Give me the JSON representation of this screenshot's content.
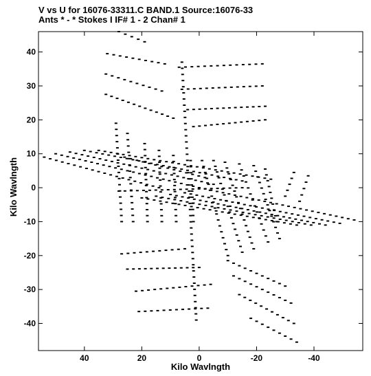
{
  "chart_data": {
    "type": "scatter",
    "title": "V vs U for 16076-33311.C BAND.1   Source:16076-33",
    "subtitle": "Ants * - *    Stokes I  IF# 1 - 2  Chan# 1",
    "xlabel": "Kilo Wavlngth",
    "ylabel": "Kilo Wavlngth",
    "xlim": [
      56,
      -57
    ],
    "ylim": [
      -48,
      46
    ],
    "x_reversed": true,
    "grid": false,
    "legend": "none",
    "xticks": [
      40,
      20,
      0,
      -20,
      -40
    ],
    "xtick_labels": [
      "40",
      "20",
      "0",
      "-20",
      "-40"
    ],
    "yticks": [
      40,
      30,
      20,
      10,
      0,
      -10,
      -20,
      -30,
      -40
    ],
    "ytick_labels": [
      "40",
      "30",
      "20",
      "10",
      "0",
      "-10",
      "-20",
      "-30",
      "-40"
    ],
    "point_color": "#000000",
    "tracks": [
      {
        "u0": 28.0,
        "v0": 46.0,
        "u1": 19.0,
        "v1": 43.0
      },
      {
        "u0": 32.0,
        "v0": 39.5,
        "u1": 12.0,
        "v1": 36.5
      },
      {
        "u0": 32.5,
        "v0": 33.5,
        "u1": 13.0,
        "v1": 28.5
      },
      {
        "u0": 32.5,
        "v0": 27.5,
        "u1": 9.0,
        "v1": 20.5
      },
      {
        "u0": 7.0,
        "v0": 35.5,
        "u1": -22.0,
        "v1": 36.5
      },
      {
        "u0": 6.0,
        "v0": 29.0,
        "u1": -22.0,
        "v1": 30.0
      },
      {
        "u0": 4.0,
        "v0": 23.0,
        "u1": -23.0,
        "v1": 24.0
      },
      {
        "u0": 2.0,
        "v0": 18.0,
        "u1": -23.0,
        "v1": 20.0
      },
      {
        "u0": 6.0,
        "v0": 37.0,
        "u1": 1.0,
        "v1": -39.0
      },
      {
        "u0": 27.0,
        "v0": -19.5,
        "u1": 5.0,
        "v1": -18.0
      },
      {
        "u0": 25.0,
        "v0": -24.0,
        "u1": 0.0,
        "v1": -23.5
      },
      {
        "u0": 22.0,
        "v0": -30.5,
        "u1": -4.0,
        "v1": -28.5
      },
      {
        "u0": 21.0,
        "v0": -36.5,
        "u1": -3.0,
        "v1": -35.5
      },
      {
        "u0": -10.0,
        "v0": -21.5,
        "u1": -30.0,
        "v1": -29.0
      },
      {
        "u0": -12.0,
        "v0": -26.0,
        "u1": -32.0,
        "v1": -34.0
      },
      {
        "u0": -14.0,
        "v0": -31.5,
        "u1": -33.0,
        "v1": -40.0
      },
      {
        "u0": -18.0,
        "v0": -38.5,
        "u1": -34.0,
        "v1": -45.5
      },
      {
        "u0": 54.0,
        "v0": 9.0,
        "u1": 14.0,
        "v1": 0.0
      },
      {
        "u0": 50.0,
        "v0": 10.0,
        "u1": 0.0,
        "v1": 0.0
      },
      {
        "u0": 45.0,
        "v0": 10.5,
        "u1": -5.0,
        "v1": 1.0
      },
      {
        "u0": 40.0,
        "v0": 11.0,
        "u1": -15.0,
        "v1": 2.0
      },
      {
        "u0": 35.0,
        "v0": 11.0,
        "u1": -25.0,
        "v1": 2.5
      },
      {
        "u0": 29.0,
        "v0": 19.0,
        "u1": 27.0,
        "v1": -10.0
      },
      {
        "u0": 25.0,
        "v0": 16.0,
        "u1": 23.0,
        "v1": -10.0
      },
      {
        "u0": 19.0,
        "v0": 13.0,
        "u1": 18.0,
        "v1": -10.0
      },
      {
        "u0": 14.0,
        "v0": 11.0,
        "u1": 13.0,
        "v1": -10.0
      },
      {
        "u0": 9.0,
        "v0": 9.5,
        "u1": 8.0,
        "v1": -10.0
      },
      {
        "u0": 3.0,
        "v0": 8.0,
        "u1": 2.0,
        "v1": -10.0
      },
      {
        "u0": 28.0,
        "v0": -1.0,
        "u1": -15.0,
        "v1": 0.0
      },
      {
        "u0": 26.0,
        "v0": 9.0,
        "u1": -2.0,
        "v1": 3.0
      },
      {
        "u0": -1.0,
        "v0": 8.0,
        "u1": -10.0,
        "v1": -20.0
      },
      {
        "u0": -5.0,
        "v0": 8.0,
        "u1": -15.0,
        "v1": -19.0
      },
      {
        "u0": -9.0,
        "v0": 7.5,
        "u1": -19.0,
        "v1": -18.0
      },
      {
        "u0": -14.0,
        "v0": 7.0,
        "u1": -24.0,
        "v1": -16.0
      },
      {
        "u0": -19.0,
        "v0": 6.5,
        "u1": -28.0,
        "v1": -15.0
      },
      {
        "u0": -23.0,
        "v0": 5.5,
        "u1": -27.0,
        "v1": -10.0
      },
      {
        "u0": 0.0,
        "v0": 0.0,
        "u1": -54.0,
        "v1": -9.5
      },
      {
        "u0": 5.0,
        "v0": -1.5,
        "u1": -49.0,
        "v1": -10.5
      },
      {
        "u0": 10.0,
        "v0": -2.0,
        "u1": -44.0,
        "v1": -11.0
      },
      {
        "u0": 15.0,
        "v0": -2.5,
        "u1": -39.0,
        "v1": -11.0
      },
      {
        "u0": 20.0,
        "v0": -3.0,
        "u1": -34.0,
        "v1": -11.0
      },
      {
        "u0": -30.0,
        "v0": -2.5,
        "u1": -33.0,
        "v1": 4.5
      },
      {
        "u0": -35.0,
        "v0": -4.0,
        "u1": -38.0,
        "v1": 3.5
      }
    ]
  }
}
